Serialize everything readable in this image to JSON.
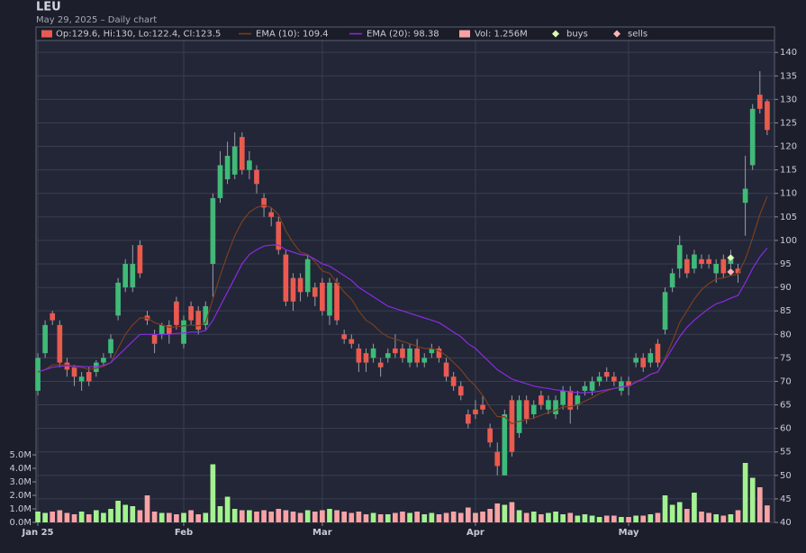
{
  "chart_data": {
    "type": "candlestick",
    "title": "LEU",
    "subtitle": "May 29, 2025 – Daily chart",
    "xlim": [
      -0.25,
      101
    ],
    "xticks": [
      {
        "value": 0,
        "label": "Jan 25"
      },
      {
        "value": 20,
        "label": "Feb"
      },
      {
        "value": 39,
        "label": "Mar"
      },
      {
        "value": 60,
        "label": "Apr"
      },
      {
        "value": 81,
        "label": "May"
      }
    ],
    "ylim": [
      40,
      145.4
    ],
    "yticks": [
      40,
      45,
      50,
      55,
      60,
      65,
      70,
      75,
      80,
      85,
      90,
      95,
      100,
      105,
      110,
      115,
      120,
      125,
      130,
      135,
      140
    ],
    "y2lim": [
      0,
      5
    ],
    "y2ticks": [
      {
        "value": 0,
        "label": "0.0M"
      },
      {
        "value": 1,
        "label": "1.0M"
      },
      {
        "value": 2,
        "label": "2.0M"
      },
      {
        "value": 3,
        "label": "3.0M"
      },
      {
        "value": 4,
        "label": "4.0M"
      },
      {
        "value": 5,
        "label": "5.0M"
      }
    ],
    "grid": true,
    "legend": "top",
    "ohlc_label": "Op:129.6, Hi:130, Lo:122.4, Cl:123.5",
    "volume_label": "Vol: 1.256M",
    "up_color": "#3fba77",
    "down_color": "#ea5a4f",
    "volume_up_color": "#a3f28f",
    "volume_down_color": "#f5a3a6",
    "open": [
      68,
      76,
      84.5,
      82,
      74,
      73,
      70,
      72,
      72,
      74,
      76,
      84,
      90,
      90,
      99,
      84,
      80,
      80,
      82,
      87,
      78,
      86,
      85,
      82,
      95,
      109,
      113,
      114,
      122,
      115,
      115,
      109,
      106,
      104,
      97,
      92,
      92,
      89,
      90,
      91,
      84,
      91,
      80,
      79,
      77,
      76,
      75,
      74,
      75,
      77,
      77,
      74,
      77,
      74,
      76,
      77,
      74,
      71,
      69,
      63,
      64,
      65,
      60,
      55,
      50,
      66,
      59,
      66,
      63,
      67,
      64,
      63,
      65,
      68,
      65,
      68,
      68,
      70,
      72,
      71,
      68,
      70,
      74,
      75,
      74,
      78,
      81,
      90,
      94,
      96,
      94,
      96,
      96,
      93,
      96,
      95,
      94,
      108,
      116,
      131,
      129.6
    ],
    "high": [
      76,
      83,
      85,
      83,
      75,
      73.5,
      72,
      73,
      74.5,
      76,
      80,
      92,
      96,
      99,
      100,
      85,
      81,
      82.5,
      83,
      88,
      84,
      87,
      86,
      87,
      110,
      119,
      121,
      123,
      123,
      119,
      116,
      110,
      107,
      105,
      98,
      93,
      93,
      97,
      91,
      92,
      92,
      92,
      81,
      80,
      78,
      77,
      78,
      75,
      77,
      80,
      78,
      78,
      79,
      76,
      78,
      77.5,
      75,
      72,
      70,
      64,
      66,
      67,
      61,
      57,
      64,
      67,
      67,
      67,
      66,
      68,
      67,
      67,
      69,
      69,
      68,
      70,
      71,
      72,
      73,
      72,
      71,
      71,
      76,
      76,
      77,
      79,
      90,
      94,
      101,
      97,
      98,
      97,
      97,
      96,
      97,
      98,
      95,
      118,
      129,
      136,
      130
    ],
    "low": [
      67,
      75,
      82,
      73,
      71,
      69,
      68,
      69,
      71,
      73.5,
      75,
      83,
      89,
      89,
      92,
      82,
      76,
      79,
      78,
      81,
      77,
      82,
      80,
      81,
      88,
      108,
      112,
      113,
      114,
      113,
      110,
      105,
      103,
      97,
      86,
      85,
      87,
      88,
      86,
      84,
      82,
      82,
      78,
      77,
      72,
      72,
      74,
      71,
      74,
      75,
      74,
      73,
      73,
      73,
      75,
      74,
      70,
      68,
      66,
      60,
      62,
      63,
      56,
      50,
      50,
      54,
      58,
      61,
      62,
      64,
      63,
      62,
      64,
      61,
      64,
      67,
      67,
      69,
      70,
      69,
      67,
      67,
      73,
      72,
      73,
      73,
      80,
      89,
      92,
      92,
      93,
      94,
      94,
      91,
      92,
      94,
      91,
      101,
      115,
      127,
      122.4
    ],
    "close": [
      75,
      82,
      83,
      74,
      72.5,
      71,
      71,
      70,
      74,
      75,
      79,
      91,
      95,
      95,
      93,
      83,
      78,
      82,
      80,
      82,
      83,
      83,
      81,
      86,
      109,
      116,
      118,
      120,
      115,
      117,
      112,
      107,
      105,
      98,
      87,
      87,
      89,
      96,
      88,
      85,
      91,
      83,
      79,
      78,
      74,
      74,
      77,
      73,
      76,
      76,
      75,
      77,
      74,
      75,
      77,
      75,
      71,
      69,
      67,
      61,
      63,
      64,
      57,
      52,
      63,
      55,
      66,
      62,
      65,
      65,
      66,
      66,
      68,
      64,
      67,
      69,
      70,
      71,
      71,
      70,
      70,
      69,
      75,
      73,
      76,
      74,
      89,
      93,
      99,
      93,
      97,
      95,
      95,
      95,
      93,
      96,
      93,
      111,
      128,
      128,
      123.5
    ],
    "volume": [
      0.8,
      0.7,
      0.8,
      0.9,
      0.7,
      0.6,
      0.8,
      0.6,
      0.9,
      0.7,
      1.0,
      1.6,
      1.3,
      1.2,
      0.9,
      2.0,
      0.8,
      0.7,
      0.7,
      0.6,
      0.7,
      0.9,
      0.6,
      0.7,
      4.3,
      1.2,
      1.9,
      1.0,
      0.9,
      0.9,
      0.8,
      0.9,
      0.8,
      1.0,
      0.9,
      0.8,
      0.7,
      0.9,
      0.8,
      0.9,
      1.0,
      0.9,
      0.8,
      0.7,
      0.8,
      0.6,
      0.7,
      0.6,
      0.6,
      0.7,
      0.8,
      0.7,
      0.8,
      0.6,
      0.7,
      0.6,
      0.7,
      0.8,
      0.7,
      1.1,
      0.7,
      0.8,
      1.0,
      1.4,
      1.3,
      1.5,
      0.9,
      0.7,
      0.8,
      0.6,
      0.7,
      0.8,
      0.6,
      0.7,
      0.5,
      0.6,
      0.5,
      0.4,
      0.5,
      0.5,
      0.4,
      0.4,
      0.5,
      0.5,
      0.6,
      0.7,
      2.0,
      1.3,
      1.5,
      1.0,
      2.2,
      0.8,
      0.7,
      0.6,
      0.5,
      0.6,
      0.9,
      4.4,
      3.3,
      2.6,
      1.256
    ],
    "series": [
      {
        "name": "EMA (10): 109.4",
        "color": "#7a3f22",
        "values": [
          72,
          72.5,
          73.5,
          73.5,
          73.5,
          73,
          73,
          72.5,
          72.8,
          73.2,
          74,
          77,
          80,
          82,
          83.5,
          83.5,
          82.5,
          82,
          81.5,
          81.6,
          81.8,
          82,
          81.8,
          82.5,
          87.5,
          92.5,
          97,
          101,
          104,
          106,
          107,
          107.5,
          107,
          105.5,
          102,
          99.5,
          97.5,
          97,
          95.5,
          93.5,
          93,
          91,
          89,
          87.5,
          85,
          83,
          82,
          80.5,
          79.5,
          79,
          78.5,
          78,
          77.5,
          77,
          77,
          76.5,
          75.5,
          74,
          72.5,
          70.5,
          69,
          67,
          64.5,
          62.5,
          62.5,
          61,
          61.5,
          61.8,
          62.2,
          62.8,
          63.4,
          63.8,
          64.6,
          64.6,
          65,
          65.8,
          66.5,
          67.4,
          68,
          68.5,
          68.8,
          69,
          70,
          70.5,
          71.5,
          72,
          75,
          78.5,
          82.5,
          85,
          87.5,
          89.5,
          90.8,
          91.8,
          92,
          92.5,
          92.8,
          96,
          100.5,
          105.5,
          109.4
        ]
      },
      {
        "name": "EMA (20): 98.38",
        "color": "#8a2be2",
        "values": [
          72,
          72.5,
          73,
          73.2,
          73.3,
          73.3,
          73.2,
          73.1,
          73.2,
          73.4,
          74,
          75.5,
          77,
          78.5,
          80,
          80,
          80,
          80,
          80,
          80.2,
          80.3,
          80.5,
          80.5,
          80.8,
          83,
          86,
          89,
          92,
          95,
          97,
          98,
          98.8,
          99,
          99,
          98,
          97.5,
          97,
          96.8,
          96,
          95,
          94.5,
          93.5,
          92.5,
          91.5,
          90,
          89,
          88,
          87,
          86,
          85.5,
          85,
          84.5,
          84,
          83.5,
          83,
          82.5,
          81.5,
          80.5,
          79.5,
          78,
          77,
          75.5,
          74,
          72.5,
          71.5,
          70.5,
          70,
          69.5,
          69,
          68.7,
          68.5,
          68.2,
          68,
          67.8,
          67.6,
          67.6,
          67.7,
          67.9,
          68.2,
          68.5,
          68.8,
          69,
          69.8,
          70.5,
          71.5,
          72,
          74.5,
          77,
          79.5,
          81.5,
          83,
          84.3,
          85.5,
          86.5,
          87,
          87.7,
          88.3,
          91,
          94,
          96.5,
          98.38
        ]
      }
    ],
    "markers": [
      {
        "name": "buys",
        "color": "#dcffb4",
        "x": [
          95
        ],
        "values": [
          96.3
        ]
      },
      {
        "name": "sells",
        "color": "#ffb4b4",
        "x": [
          95
        ],
        "values": [
          93.3
        ]
      }
    ]
  }
}
